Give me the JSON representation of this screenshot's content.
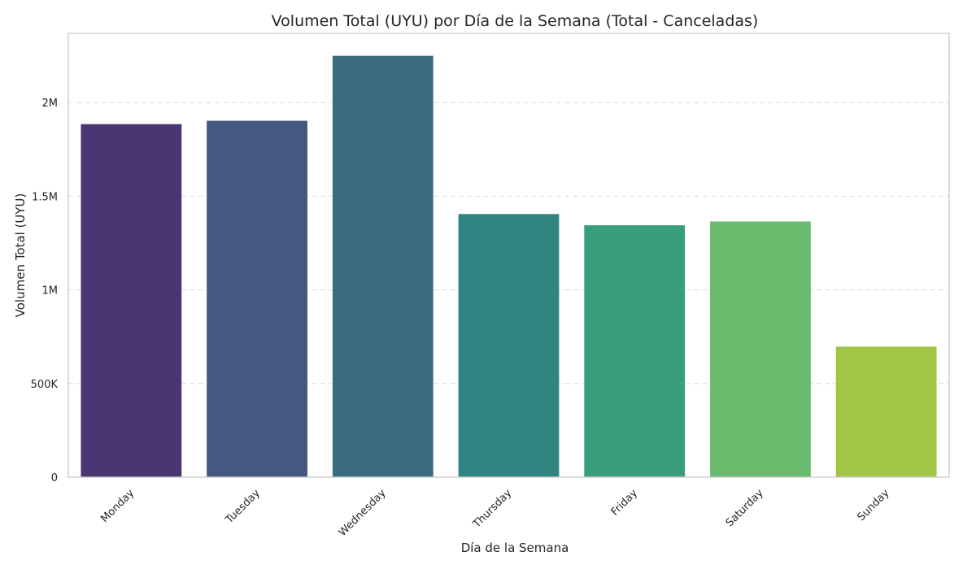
{
  "chart_data": {
    "type": "bar",
    "title": "Volumen Total (UYU) por Día de la Semana (Total - Canceladas)",
    "xlabel": "Día de la Semana",
    "ylabel": "Volumen Total (UYU)",
    "categories": [
      "Monday",
      "Tuesday",
      "Wednesday",
      "Thursday",
      "Friday",
      "Saturday",
      "Sunday"
    ],
    "values": [
      1885000,
      1903000,
      2250000,
      1405000,
      1345000,
      1365000,
      697000
    ],
    "ylim": [
      0,
      2370000
    ],
    "yticks": [
      0,
      500000,
      1000000,
      1500000,
      2000000
    ],
    "ytick_labels": [
      "0",
      "500K",
      "1M",
      "1.5M",
      "2M"
    ],
    "grid": "horizontal-dashed",
    "colors": [
      "#4a3672",
      "#45587f",
      "#3a6c80",
      "#2f8580",
      "#389e7b",
      "#6abb6e",
      "#a1c645"
    ]
  }
}
